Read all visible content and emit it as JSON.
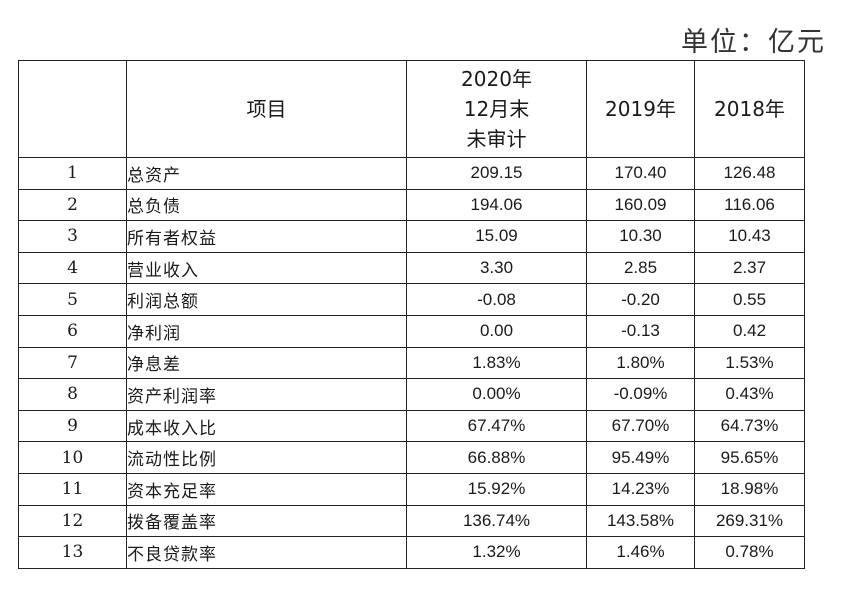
{
  "unit_label": "单位：亿元",
  "header": {
    "index": "",
    "item": "项目",
    "col1_lines": [
      "2020年",
      "12月末",
      "未审计"
    ],
    "col2": "2019年",
    "col3": "2018年"
  },
  "rows": [
    {
      "no": "1",
      "item": "总资产",
      "v2020": "209.15",
      "v2019": "170.40",
      "v2018": "126.48"
    },
    {
      "no": "2",
      "item": "总负债",
      "v2020": "194.06",
      "v2019": "160.09",
      "v2018": "116.06"
    },
    {
      "no": "3",
      "item": "所有者权益",
      "v2020": "15.09",
      "v2019": "10.30",
      "v2018": "10.43"
    },
    {
      "no": "4",
      "item": "营业收入",
      "v2020": "3.30",
      "v2019": "2.85",
      "v2018": "2.37"
    },
    {
      "no": "5",
      "item": "利润总额",
      "v2020": "-0.08",
      "v2019": "-0.20",
      "v2018": "0.55"
    },
    {
      "no": "6",
      "item": "净利润",
      "v2020": "0.00",
      "v2019": "-0.13",
      "v2018": "0.42"
    },
    {
      "no": "7",
      "item": "净息差",
      "v2020": "1.83%",
      "v2019": "1.80%",
      "v2018": "1.53%"
    },
    {
      "no": "8",
      "item": "资产利润率",
      "v2020": "0.00%",
      "v2019": "-0.09%",
      "v2018": "0.43%"
    },
    {
      "no": "9",
      "item": "成本收入比",
      "v2020": "67.47%",
      "v2019": "67.70%",
      "v2018": "64.73%"
    },
    {
      "no": "10",
      "item": "流动性比例",
      "v2020": "66.88%",
      "v2019": "95.49%",
      "v2018": "95.65%"
    },
    {
      "no": "11",
      "item": "资本充足率",
      "v2020": "15.92%",
      "v2019": "14.23%",
      "v2018": "18.98%"
    },
    {
      "no": "12",
      "item": "拨备覆盖率",
      "v2020": "136.74%",
      "v2019": "143.58%",
      "v2018": "269.31%"
    },
    {
      "no": "13",
      "item": "不良贷款率",
      "v2020": "1.32%",
      "v2019": "1.46%",
      "v2018": "0.78%"
    }
  ]
}
